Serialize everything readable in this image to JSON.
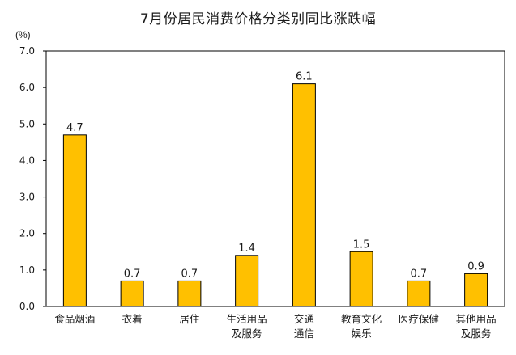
{
  "chart_data": {
    "type": "bar",
    "title": "7月份居民消费价格分类别同比涨跌幅",
    "unit": "(%)",
    "categories": [
      [
        "食品烟酒"
      ],
      [
        "衣着"
      ],
      [
        "居住"
      ],
      [
        "生活用品",
        "及服务"
      ],
      [
        "交通",
        "通信"
      ],
      [
        "教育文化",
        "娱乐"
      ],
      [
        "医疗保健"
      ],
      [
        "其他用品",
        "及服务"
      ]
    ],
    "values": [
      4.7,
      0.7,
      0.7,
      1.4,
      6.1,
      1.5,
      0.7,
      0.9
    ],
    "value_labels": [
      "4.7",
      "0.7",
      "0.7",
      "1.4",
      "6.1",
      "1.5",
      "0.7",
      "0.9"
    ],
    "ylim": [
      0,
      7
    ],
    "yticks": [
      "0.0",
      "1.0",
      "2.0",
      "3.0",
      "4.0",
      "5.0",
      "6.0",
      "7.0"
    ],
    "grid": false,
    "bar_color": "#FFC000",
    "bar_edge_color": "#000000"
  }
}
